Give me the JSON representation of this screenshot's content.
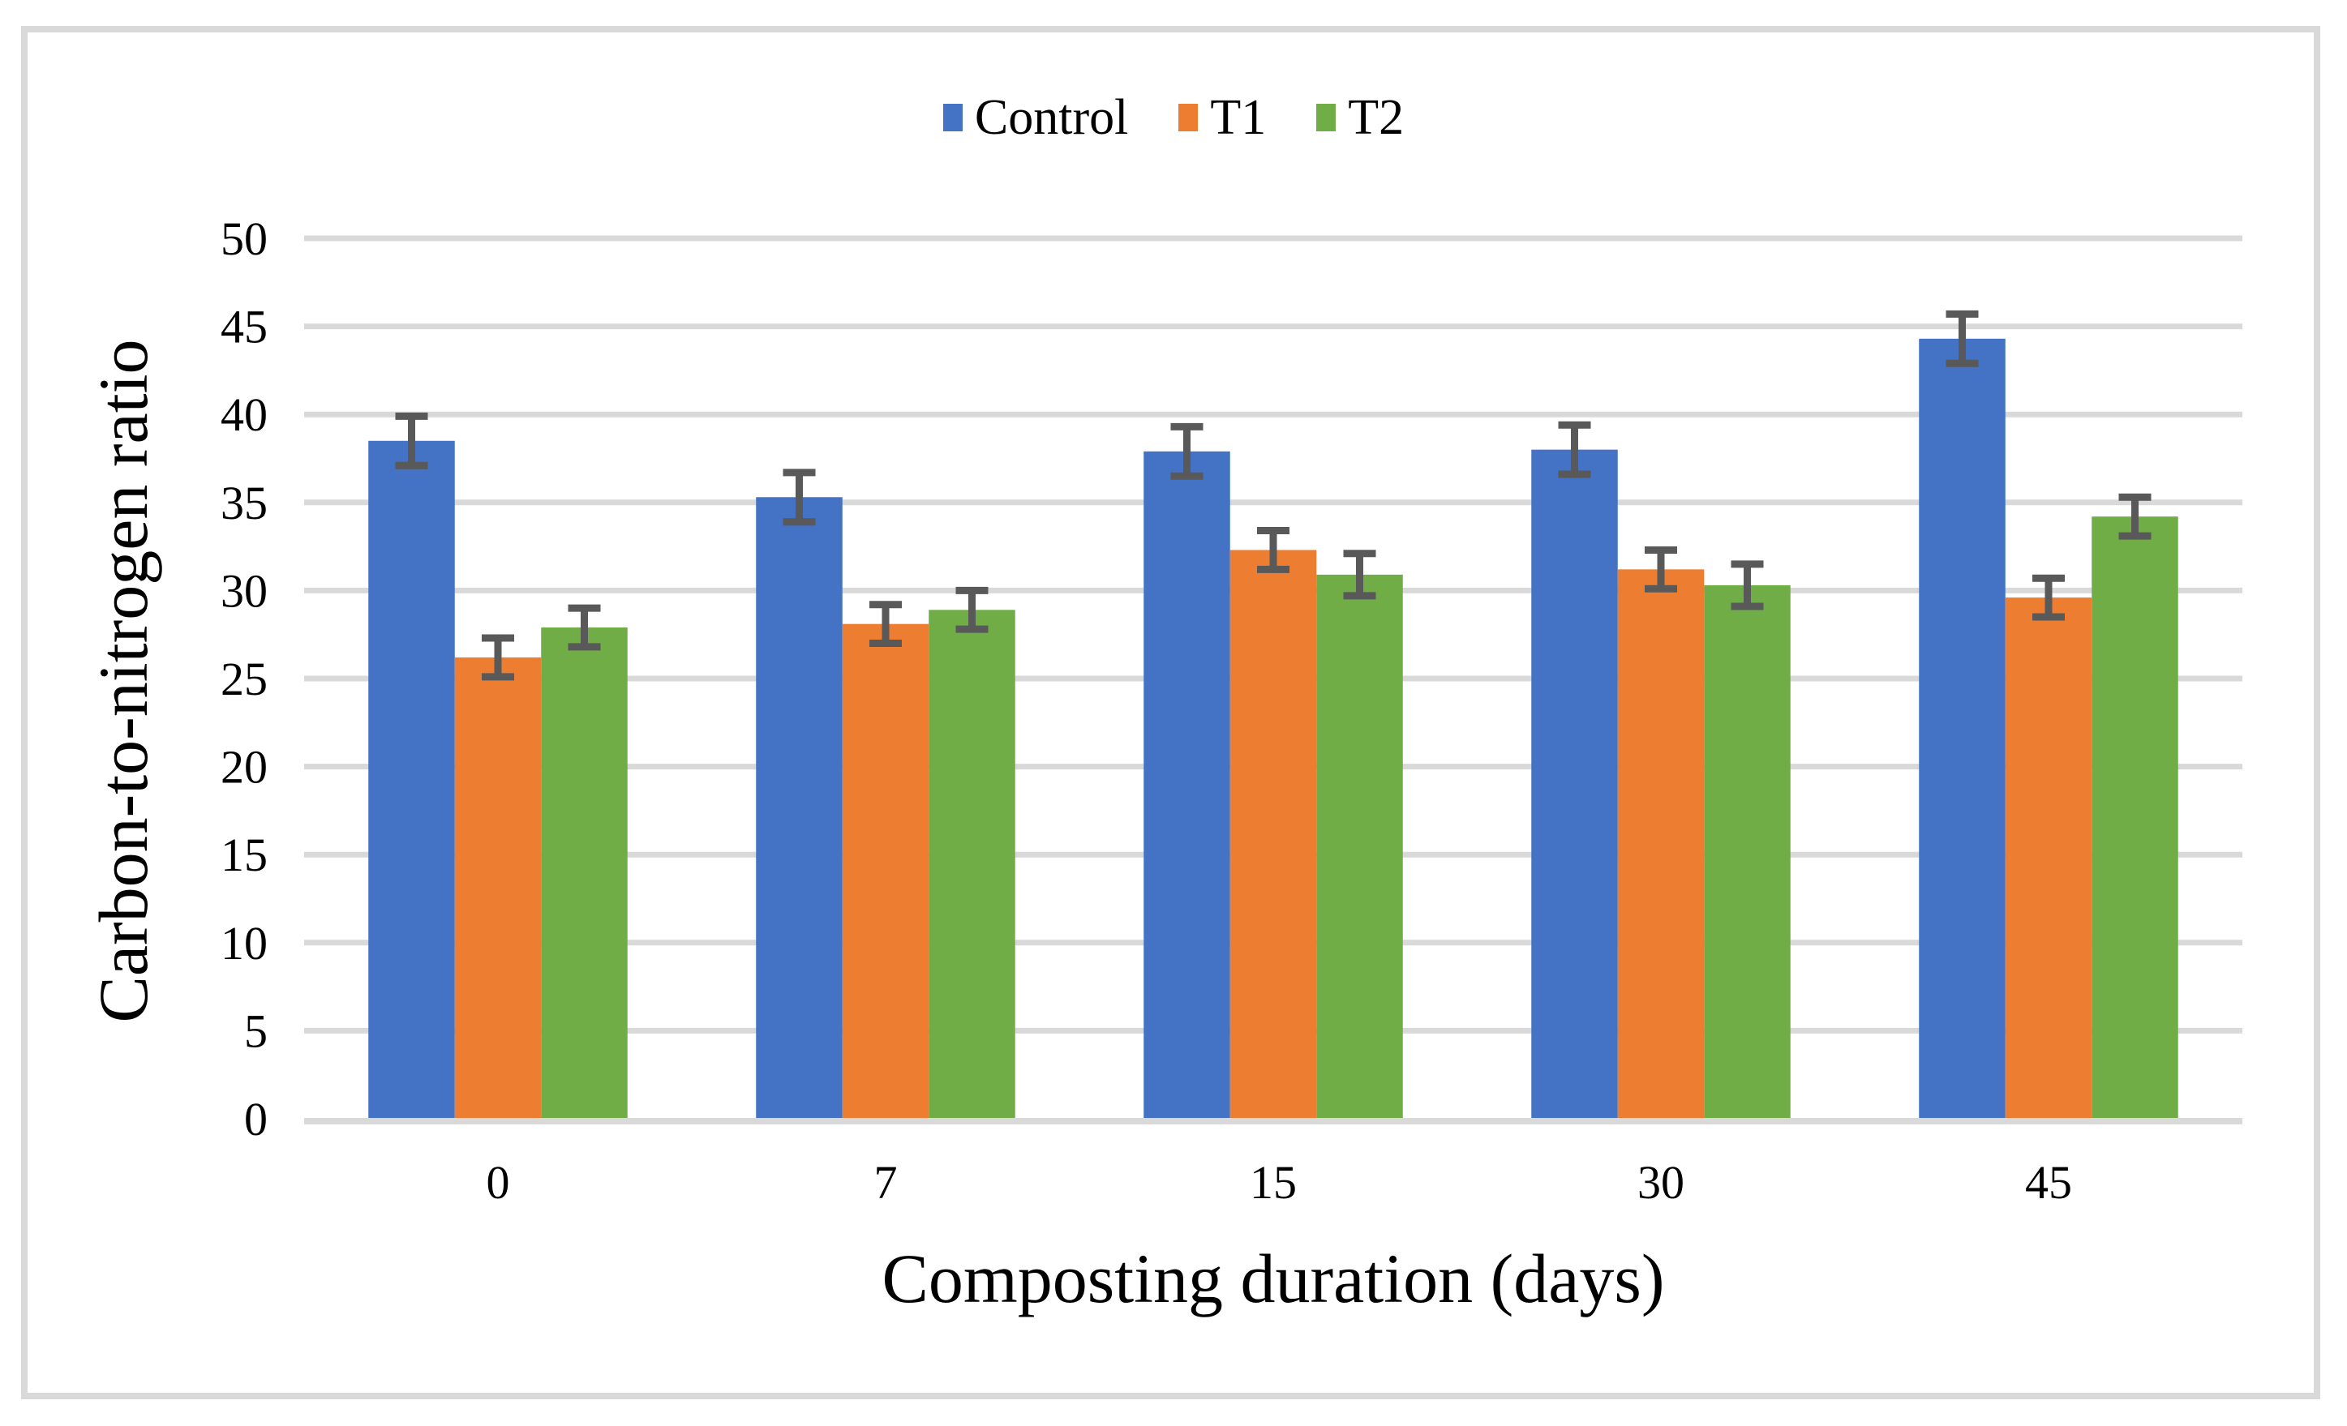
{
  "chart_data": {
    "type": "bar",
    "title": "",
    "categories": [
      "0",
      "7",
      "15",
      "30",
      "45"
    ],
    "series": [
      {
        "name": "Control",
        "color": "#4472C4",
        "values": [
          38.5,
          35.3,
          37.9,
          38.0,
          44.3
        ],
        "errors": [
          1.4,
          1.4,
          1.4,
          1.4,
          1.4
        ]
      },
      {
        "name": "T1",
        "color": "#ED7D31",
        "values": [
          26.2,
          28.1,
          32.3,
          31.2,
          29.6
        ],
        "errors": [
          1.1,
          1.1,
          1.1,
          1.1,
          1.1
        ]
      },
      {
        "name": "T2",
        "color": "#70AD47",
        "values": [
          27.9,
          28.9,
          30.9,
          30.3,
          34.2
        ],
        "errors": [
          1.1,
          1.1,
          1.2,
          1.2,
          1.1
        ]
      }
    ],
    "xlabel": "Composting duration (days)",
    "ylabel": "Carbon-to-nitrogen ratio",
    "ylim": [
      0,
      50
    ],
    "ytick_step": 5,
    "yticks": [
      "0",
      "5",
      "10",
      "15",
      "20",
      "25",
      "30",
      "35",
      "40",
      "45",
      "50"
    ],
    "grid": true,
    "legend_position": "top",
    "colors": {
      "error_bar": "#595959",
      "gridline": "#D9D9D9",
      "axis_line": "#D9D9D9",
      "border": "#D9D9D9",
      "background": "#FFFFFF",
      "text": "#000000"
    }
  }
}
